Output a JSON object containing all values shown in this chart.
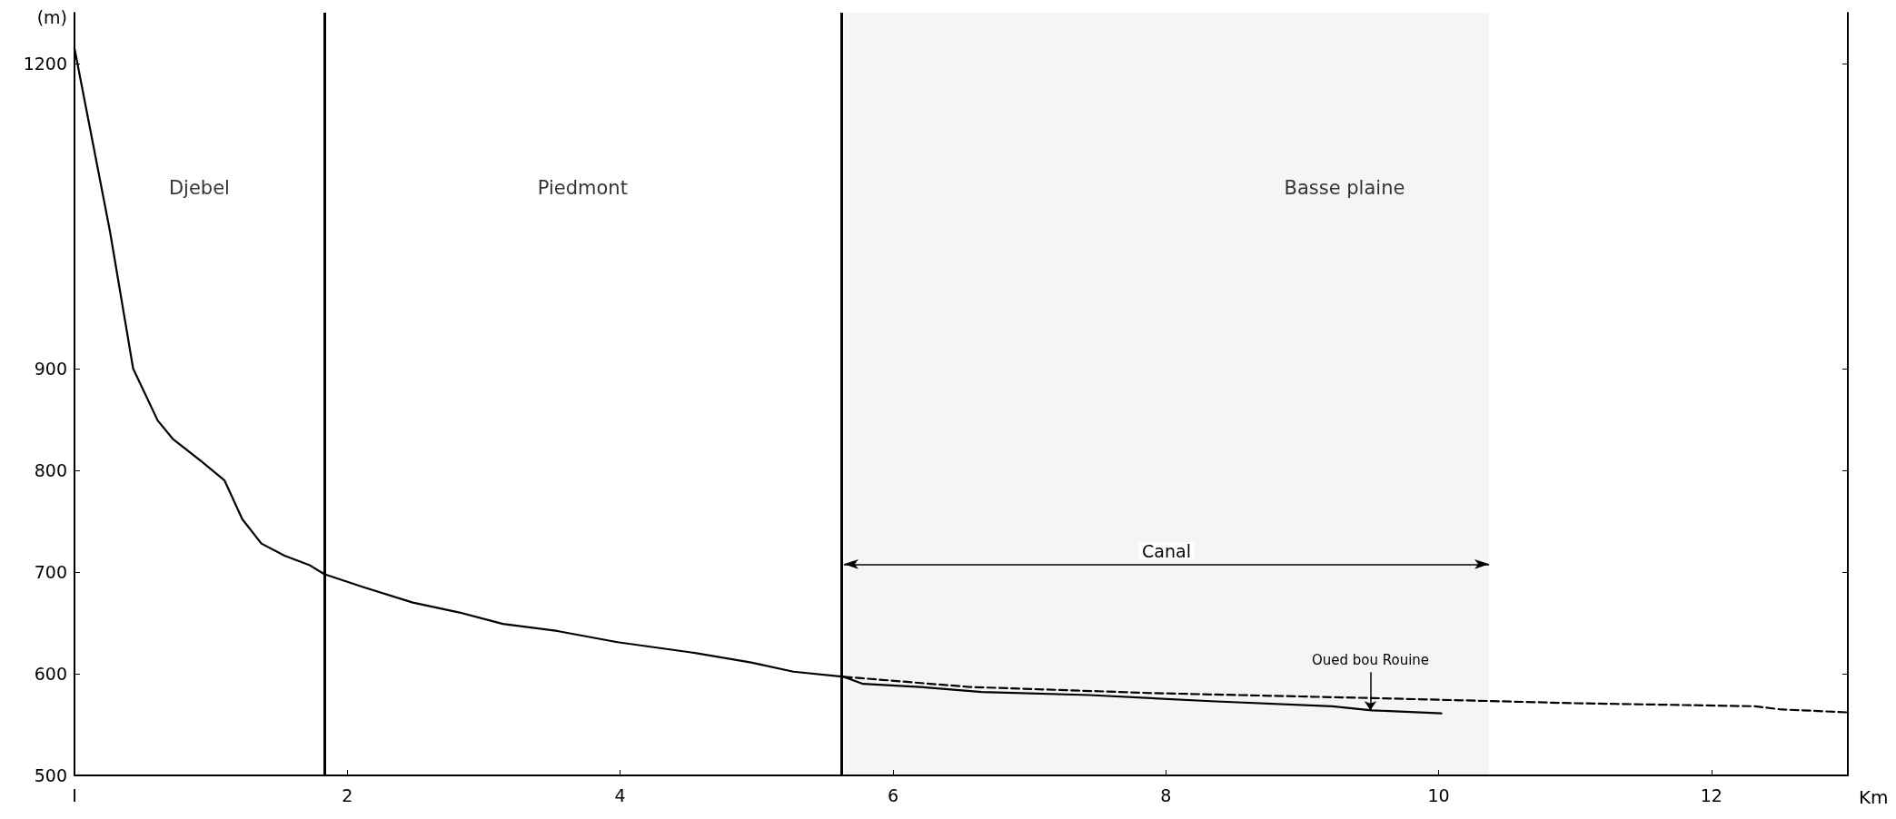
{
  "chart_data": {
    "type": "line",
    "xlabel": "Km",
    "ylabel": "(m)",
    "xlim": [
      0,
      13
    ],
    "xticks": [
      {
        "value": 0,
        "label": "I"
      },
      2,
      4,
      6,
      8,
      10,
      12
    ],
    "ylim": [
      500,
      1250
    ],
    "yticks": [
      500,
      600,
      700,
      800,
      900,
      1200
    ],
    "series": [
      {
        "color": "#000000",
        "line_style": "solid",
        "x": [
          0,
          0.26,
          0.43,
          0.61,
          0.72,
          0.92,
          1.1,
          1.23,
          1.37,
          1.54,
          1.72,
          1.83,
          2.12,
          2.48,
          2.83,
          3.14,
          3.54,
          3.98,
          4.52,
          4.96,
          5.27,
          5.64,
          5.78,
          6.2,
          6.65,
          7.44,
          8.33,
          9.22,
          9.51,
          10.02
        ],
        "values": [
          1215,
          1035,
          900,
          849,
          831,
          810,
          790,
          752,
          728,
          716,
          707,
          698,
          685,
          670,
          660,
          649,
          642,
          631,
          621,
          611,
          602,
          597,
          590,
          587,
          582,
          579,
          573,
          568,
          564,
          561
        ]
      },
      {
        "color": "#000000",
        "line_style": "dashed",
        "x": [
          5.64,
          6.56,
          7.89,
          9.53,
          11.0,
          12.32,
          12.5,
          13.0
        ],
        "values": [
          597,
          587,
          581,
          576,
          571,
          568,
          565,
          562
        ]
      }
    ],
    "ref_lines": [
      {
        "axis": "x",
        "value": 1.83,
        "color": "#000000"
      },
      {
        "axis": "x",
        "value": 5.62,
        "color": "#000000"
      }
    ],
    "bands": [
      {
        "axis": "x",
        "from": 5.64,
        "to": 10.37,
        "label": "Canal"
      }
    ],
    "annotations": [
      "Djebel",
      "Piedmont",
      "Basse plaine",
      {
        "text": "Oued bou Rouine",
        "x": 9.5,
        "y": 564
      }
    ],
    "grid": false,
    "marker": "none"
  }
}
